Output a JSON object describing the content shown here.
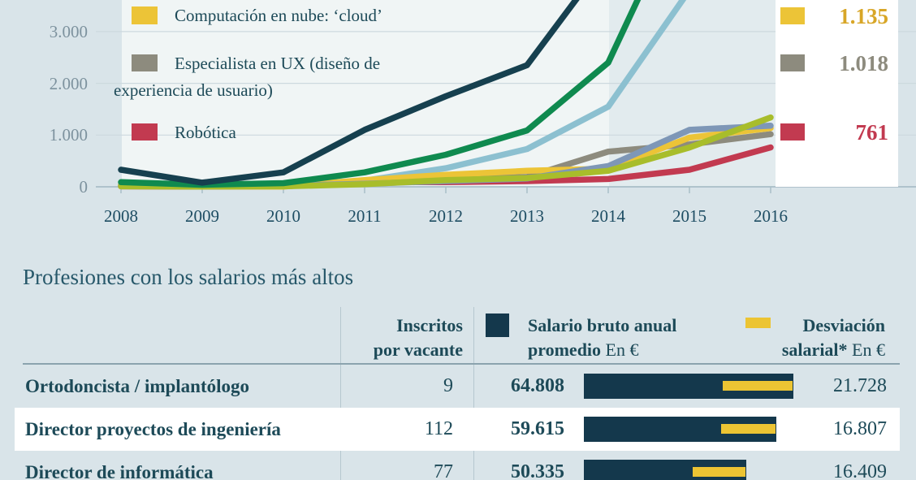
{
  "chart_data": [
    {
      "type": "line",
      "x": [
        2008,
        2009,
        2010,
        2011,
        2012,
        2013,
        2014,
        2015,
        2016
      ],
      "x_tick_labels": [
        "2008",
        "2009",
        "2010",
        "2011",
        "2012",
        "2013",
        "2014",
        "2015",
        "2016"
      ],
      "y_tick_labels": [
        "3.000",
        "2.000",
        "1.000",
        "0"
      ],
      "y_tick_values": [
        3000,
        2000,
        1000,
        0
      ],
      "ylim_visible": [
        0,
        3611
      ],
      "grid": true,
      "highlight_band_years": [
        2014,
        2016
      ],
      "legend_position": "top-left-partial",
      "series": [
        {
          "name": "navy",
          "color": "#16404f",
          "values": [
            330,
            80,
            280,
            1100,
            1750,
            2350,
            4450,
            6500,
            8500
          ]
        },
        {
          "name": "green",
          "color": "#0f8a4f",
          "values": [
            90,
            40,
            70,
            280,
            620,
            1090,
            2400,
            5750,
            8000
          ]
        },
        {
          "name": "light-blue",
          "color": "#8cc0d0",
          "values": [
            30,
            15,
            40,
            120,
            360,
            730,
            1550,
            3800,
            5500
          ]
        },
        {
          "name": "slate-blue",
          "color": "#7e97b7",
          "values": [
            20,
            10,
            20,
            60,
            110,
            160,
            400,
            1100,
            1180
          ]
        },
        {
          "name": "olive-green",
          "color": "#a8bd2b",
          "values": [
            10,
            5,
            10,
            50,
            130,
            170,
            310,
            760,
            1340
          ]
        },
        {
          "name": "cloud-computing",
          "color": "#ecc437",
          "values": [
            40,
            10,
            5,
            130,
            230,
            310,
            350,
            950,
            1135
          ],
          "legend_lines": [
            "Computación en nube: ‘cloud’"
          ],
          "end_label": "1.135",
          "end_label_color": "#d8a627"
        },
        {
          "name": "ux-specialist",
          "color": "#8d8b7e",
          "values": [
            40,
            20,
            30,
            100,
            150,
            190,
            680,
            820,
            1018
          ],
          "legend_lines": [
            "Especialista en UX (diseño de",
            "experiencia de usuario)"
          ],
          "end_label": "1.018",
          "end_label_color": "#8d8b7e"
        },
        {
          "name": "robotics",
          "color": "#c23a50",
          "values": [
            10,
            5,
            10,
            90,
            90,
            110,
            150,
            330,
            761
          ],
          "legend_lines": [
            "Robótica"
          ],
          "end_label": "761",
          "end_label_color": "#c23a50"
        }
      ]
    },
    {
      "type": "bar",
      "title": "Profesiones con los salarios más altos",
      "columns": [
        {
          "id": "inscritos",
          "header_lines": [
            "Inscritos",
            "por vacante"
          ]
        },
        {
          "id": "salario",
          "header_bold_1": "Salario bruto anual",
          "header_bold_2": "promedio",
          "header_unit": "En €",
          "swatch_color": "#14384c"
        },
        {
          "id": "desviacion",
          "header_bold_1": "Desviación",
          "header_bold_2": "salarial*",
          "header_unit": "En €",
          "swatch_color": "#ecc433"
        }
      ],
      "rows": [
        {
          "name": "Ortodoncista / implantólogo",
          "inscritos": "9",
          "salario": "64.808",
          "salario_num": 64808,
          "desviacion": "21.728",
          "desviacion_num": 21728
        },
        {
          "name": "Director proyectos de ingeniería",
          "inscritos": "112",
          "salario": "59.615",
          "salario_num": 59615,
          "desviacion": "16.807",
          "desviacion_num": 16807
        },
        {
          "name": "Director de informática",
          "inscritos": "77",
          "salario": "50.335",
          "salario_num": 50335,
          "desviacion": "16.409",
          "desviacion_num": 16409
        }
      ]
    }
  ],
  "colors": {
    "page_bg": "#d9e4e9",
    "plot_bg": "#f0f5f5",
    "band_bg": "#e2ebee",
    "panel_bg": "#ffffff",
    "text_navy": "#1d4a58",
    "grid": "#cdd9de",
    "axis": "#a9bec7",
    "bar_navy": "#14384c",
    "bar_yellow": "#ecc433"
  }
}
